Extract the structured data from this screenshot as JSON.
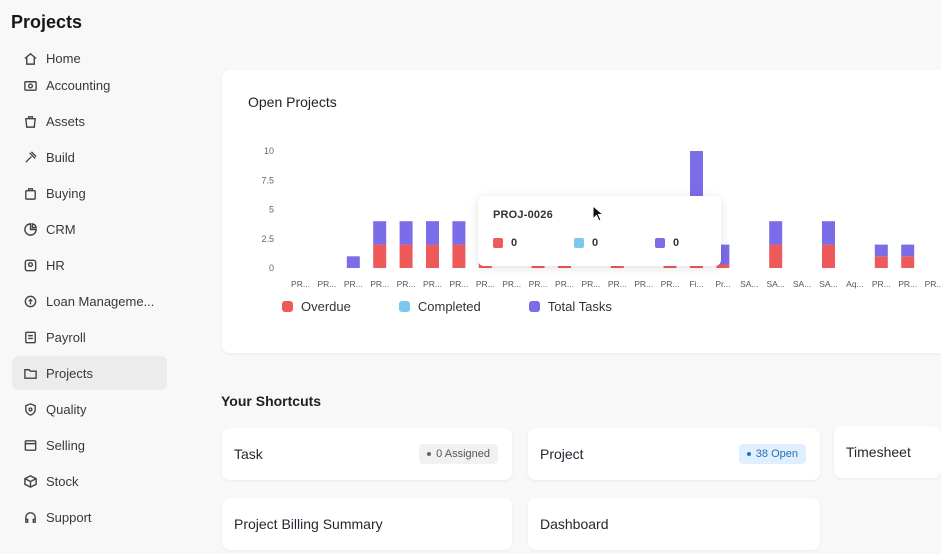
{
  "page": {
    "title": "Projects"
  },
  "sidebar": {
    "items": [
      {
        "label": "Home",
        "icon": "home-icon"
      },
      {
        "label": "Accounting",
        "icon": "accounting-icon"
      },
      {
        "label": "Assets",
        "icon": "assets-icon"
      },
      {
        "label": "Build",
        "icon": "build-icon"
      },
      {
        "label": "Buying",
        "icon": "buying-icon"
      },
      {
        "label": "CRM",
        "icon": "crm-icon"
      },
      {
        "label": "HR",
        "icon": "hr-icon"
      },
      {
        "label": "Loan Manageme...",
        "icon": "loan-icon"
      },
      {
        "label": "Payroll",
        "icon": "payroll-icon"
      },
      {
        "label": "Projects",
        "icon": "folder-icon",
        "active": true
      },
      {
        "label": "Quality",
        "icon": "quality-icon"
      },
      {
        "label": "Selling",
        "icon": "selling-icon"
      },
      {
        "label": "Stock",
        "icon": "stock-icon"
      },
      {
        "label": "Support",
        "icon": "support-icon"
      }
    ]
  },
  "open_projects": {
    "title": "Open Projects",
    "legend": [
      "Overdue",
      "Completed",
      "Total Tasks"
    ],
    "tooltip": {
      "title": "PROJ-0026",
      "values": [
        "0",
        "0",
        "0"
      ]
    }
  },
  "chart_data": {
    "type": "bar",
    "stacked": true,
    "title": "Open Projects",
    "categories": [
      "PR...",
      "PR...",
      "PR...",
      "PR...",
      "PR...",
      "PR...",
      "PR...",
      "PR...",
      "PR...",
      "PR...",
      "PR...",
      "PR...",
      "PR...",
      "PR...",
      "PR...",
      "Fi...",
      "Pr...",
      "SA...",
      "SA...",
      "SA...",
      "SA...",
      "Aq...",
      "PR...",
      "PR...",
      "PR..."
    ],
    "yticks": [
      "0",
      "2.5",
      "5",
      "7.5",
      "10"
    ],
    "ylim": [
      0,
      10
    ],
    "series": [
      {
        "name": "Overdue",
        "color": "#ee5a5a",
        "values": [
          0,
          0,
          0,
          2,
          2,
          2,
          2,
          0.3,
          0,
          0.3,
          0.3,
          0,
          0.3,
          0,
          0.3,
          0.3,
          0.3,
          0,
          2,
          0,
          2,
          0,
          1,
          1,
          0
        ]
      },
      {
        "name": "Completed",
        "color": "#7cc8f0",
        "values": [
          0,
          0,
          0,
          0,
          0,
          0,
          0,
          0,
          0,
          0,
          0,
          0,
          0,
          0,
          0,
          0,
          0,
          0,
          0,
          0,
          0,
          0,
          0,
          0,
          0
        ]
      },
      {
        "name": "Total Tasks",
        "color": "#7b6ce8",
        "values": [
          0,
          0,
          1,
          2,
          2,
          2,
          2,
          1,
          0,
          0,
          0,
          0,
          0,
          0,
          0.7,
          9.7,
          1.7,
          0,
          2,
          0,
          2,
          0,
          1,
          1,
          0
        ]
      }
    ]
  },
  "shortcuts": {
    "title": "Your Shortcuts",
    "items": [
      {
        "label": "Task",
        "badge": "0 Assigned"
      },
      {
        "label": "Project",
        "badge": "38 Open"
      },
      {
        "label": "Timesheet"
      },
      {
        "label": "Project Billing Summary"
      },
      {
        "label": "Dashboard"
      }
    ]
  },
  "colors": {
    "overdue": "#ee5a5a",
    "completed": "#7cc8f0",
    "total": "#7b6ce8"
  }
}
